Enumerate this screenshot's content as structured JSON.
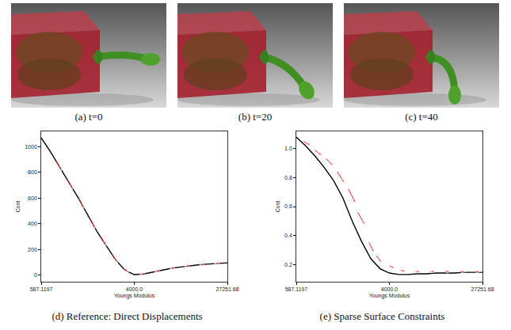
{
  "images": [
    {
      "caption": "(a) t=0"
    },
    {
      "caption": "(b) t=20"
    },
    {
      "caption": "(c) t=40"
    }
  ],
  "chart_data": [
    {
      "type": "line",
      "title": "(d) Reference: Direct Displacements",
      "x_label": "Youngs Modulus",
      "y_label": "Cost",
      "log": "x",
      "grid": false,
      "xlim": [
        587.1197,
        27251.68
      ],
      "xticks": [
        587.1197,
        {
          "value": 4000,
          "label": "4000.0"
        },
        27251.68
      ],
      "ylim": [
        -50,
        1120
      ],
      "yticks": [
        0,
        200,
        400,
        600,
        800,
        1000
      ],
      "series": [
        {
          "color": "#000000",
          "line_style": "solid",
          "x": [
            587.1197,
            711.4,
            861.6,
            1044,
            1264.9,
            1532.4,
            1856.7,
            2249.5,
            2725.2,
            3301.8,
            4000,
            4846.2,
            5871.2,
            7113.2,
            8616.6,
            10440,
            12649,
            15324,
            18567,
            22495,
            27251.68
          ],
          "values": [
            1070,
            960,
            840,
            720,
            600,
            470,
            340,
            230,
            120,
            40,
            5,
            10,
            25,
            40,
            55,
            65,
            75,
            82,
            88,
            93,
            97
          ]
        }
      ],
      "arrows": {
        "color": "#e8251f",
        "marker": "arrow",
        "items": [
          {
            "x": [
              798,
              895
            ],
            "y": [
              890,
              815
            ]
          },
          {
            "x": [
              1005,
              1128
            ],
            "y": [
              745,
              670
            ]
          },
          {
            "x": [
              1265,
              1419
            ],
            "y": [
              600,
              520
            ]
          },
          {
            "x": [
              1592,
              1787
            ],
            "y": [
              445,
              365
            ]
          },
          {
            "x": [
              2005,
              2250
            ],
            "y": [
              300,
              230
            ]
          },
          {
            "x": [
              2525,
              2833
            ],
            "y": [
              165,
              100
            ]
          },
          {
            "x": [
              3178,
              3566
            ],
            "y": [
              55,
              25
            ]
          },
          {
            "x": [
              5036,
              4488
            ],
            "y": [
              12,
              8
            ]
          },
          {
            "x": [
              6844,
              6102
            ],
            "y": [
              37,
              28
            ]
          },
          {
            "x": [
              9306,
              8296
            ],
            "y": [
              59,
              53
            ]
          },
          {
            "x": [
              12649,
              11274
            ],
            "y": [
              75,
              69
            ]
          },
          {
            "x": [
              17190,
              15324
            ],
            "y": [
              86,
              82
            ]
          },
          {
            "x": [
              23372,
              20836
            ],
            "y": [
              94,
              91
            ]
          }
        ]
      }
    },
    {
      "type": "line",
      "title": "(e) Sparse Surface Constraints",
      "x_label": "Youngs Modulus",
      "y_label": "Cost",
      "log": "x",
      "grid": false,
      "xlim": [
        587.1197,
        27251.68
      ],
      "xticks": [
        587.1197,
        {
          "value": 4000,
          "label": "4000.0"
        },
        27251.68
      ],
      "ylim": [
        0.08,
        1.12
      ],
      "yticks": [
        0.2,
        0.4,
        0.6,
        0.8,
        {
          "value": 1,
          "label": "1.0"
        }
      ],
      "series": [
        {
          "color": "#000000",
          "line_style": "solid",
          "x": [
            587.1197,
            711.4,
            861.6,
            1044,
            1264.9,
            1532.4,
            1856.7,
            2249.5,
            2725.2,
            3301.8,
            4000,
            4846.2,
            5871.2,
            7113.2,
            8616.6,
            10440,
            12649,
            15324,
            18567,
            22495,
            27251.68
          ],
          "values": [
            1.08,
            1.02,
            0.95,
            0.87,
            0.78,
            0.66,
            0.5,
            0.36,
            0.24,
            0.17,
            0.14,
            0.13,
            0.13,
            0.135,
            0.135,
            0.14,
            0.14,
            0.14,
            0.145,
            0.145,
            0.145
          ]
        }
      ],
      "arrows": {
        "color": "#e8251f",
        "marker": "arrow",
        "items": [
          {
            "x": [
              684.6,
              798
            ],
            "y": [
              1.05,
              1.02
            ]
          },
          {
            "x": [
              862,
              1005
            ],
            "y": [
              0.99,
              0.95
            ]
          },
          {
            "x": [
              1085,
              1265
            ],
            "y": [
              0.93,
              0.88
            ]
          },
          {
            "x": [
              1366,
              1592
            ],
            "y": [
              0.84,
              0.76
            ]
          },
          {
            "x": [
              1720,
              2005
            ],
            "y": [
              0.72,
              0.62
            ]
          },
          {
            "x": [
              2083,
              2429
            ],
            "y": [
              0.56,
              0.47
            ]
          },
          {
            "x": [
              2624,
              2943
            ],
            "y": [
              0.35,
              0.28
            ]
          },
          {
            "x": [
              3058,
              3430
            ],
            "y": [
              0.26,
              0.21
            ]
          },
          {
            "x": [
              4000,
              4488
            ],
            "y": [
              0.19,
              0.17
            ]
          },
          {
            "x": [
              5036,
              5651
            ],
            "y": [
              0.16,
              0.15
            ]
          },
          {
            "x": [
              6844,
              7680
            ],
            "y": [
              0.15,
              0.15
            ]
          },
          {
            "x": [
              9306,
              10440
            ],
            "y": [
              0.15,
              0.15
            ]
          },
          {
            "x": [
              12649,
              14193
            ],
            "y": [
              0.15,
              0.15
            ]
          },
          {
            "x": [
              17190,
              19288
            ],
            "y": [
              0.15,
              0.15
            ]
          },
          {
            "x": [
              23372,
              26226
            ],
            "y": [
              0.15,
              0.15
            ]
          }
        ]
      }
    }
  ]
}
